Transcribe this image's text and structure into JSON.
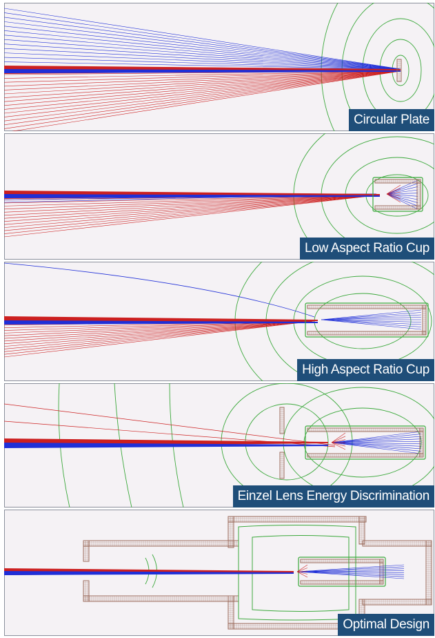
{
  "colors": {
    "panel_bg": "#f5f2f5",
    "border": "#8a8f9b",
    "red_trace": "#cc1f1f",
    "blue_trace": "#1f2fd8",
    "equipotential": "#3aa83a",
    "electrode": "#9a6a5a",
    "label_bg": "#1f4e79",
    "label_text": "#ffffff"
  },
  "panels": [
    {
      "id": "circular-plate",
      "label": "Circular Plate"
    },
    {
      "id": "low-aspect-ratio-cup",
      "label": "Low Aspect Ratio Cup"
    },
    {
      "id": "high-aspect-ratio-cup",
      "label": "High Aspect Ratio Cup"
    },
    {
      "id": "einzel-lens-energy-discrimination",
      "label": "Einzel Lens Energy Discrimination"
    },
    {
      "id": "optimal-design",
      "label": "Optimal Design"
    }
  ]
}
